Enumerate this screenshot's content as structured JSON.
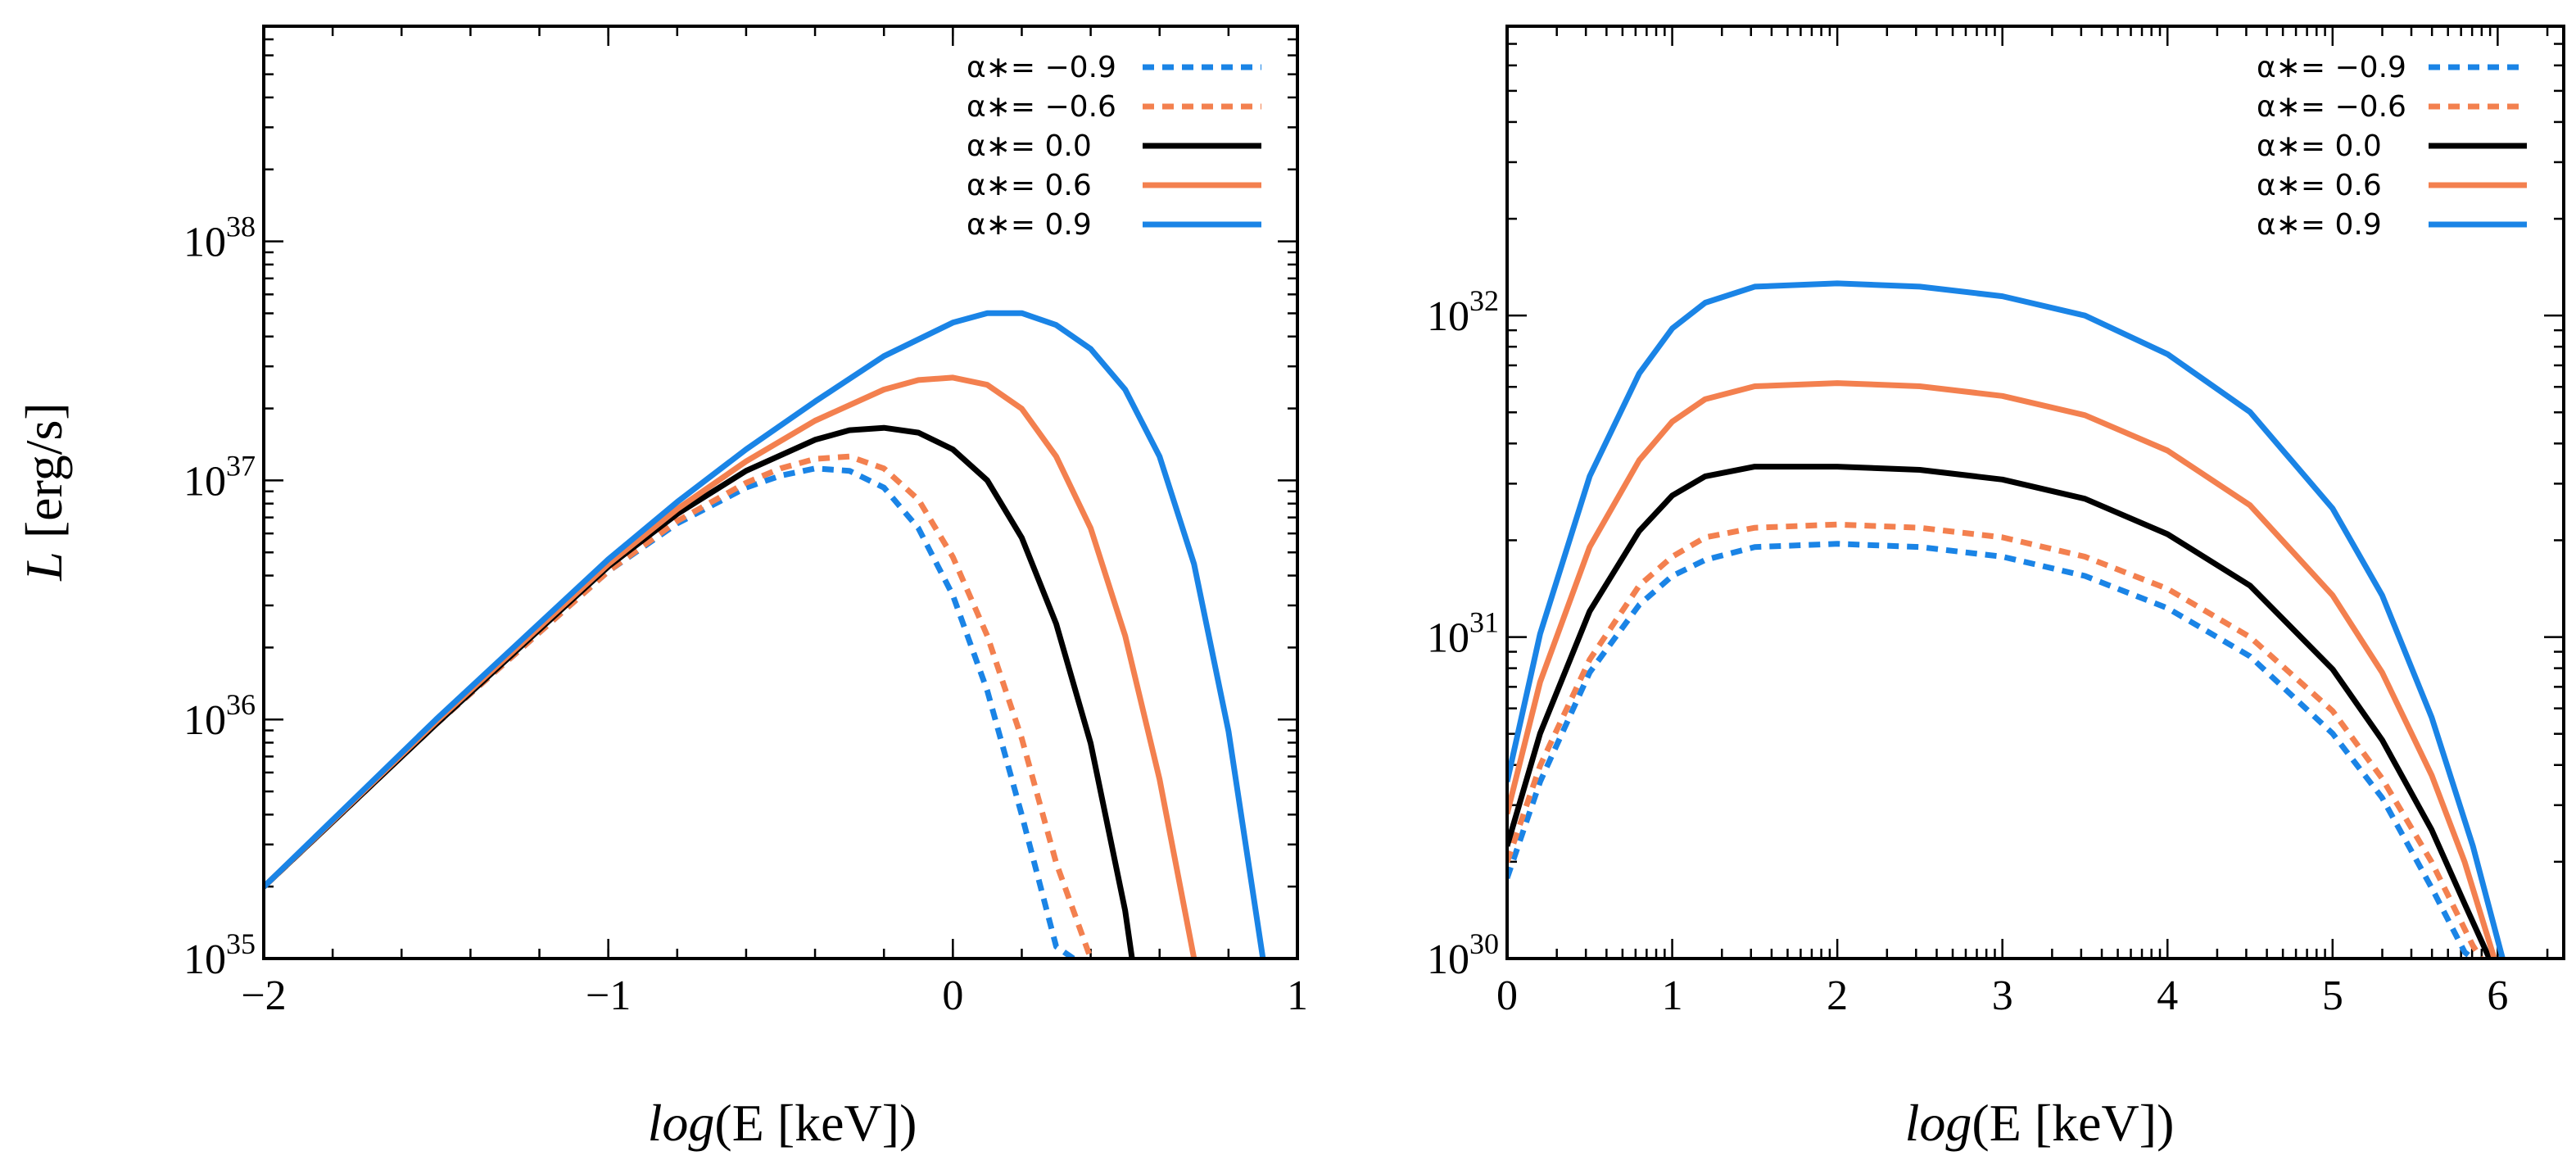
{
  "figure": {
    "ylabel_italic": "L",
    "ylabel_rest": " [erg/s]"
  },
  "colors": {
    "blue": "#1a84e6",
    "orange": "#f3804f",
    "black": "#000000"
  },
  "legend": [
    {
      "label": "α∗= −0.9",
      "color": "blue",
      "dash": true
    },
    {
      "label": "α∗= −0.6",
      "color": "orange",
      "dash": true
    },
    {
      "label": "α∗=   0.0",
      "color": "black",
      "dash": false
    },
    {
      "label": "α∗=   0.6",
      "color": "orange",
      "dash": false
    },
    {
      "label": "α∗=   0.9",
      "color": "blue",
      "dash": false
    }
  ],
  "chart_data": [
    {
      "type": "line",
      "xlabel_italic": "log",
      "xlabel_rest": "(E [keV])",
      "xlim": [
        -2,
        1
      ],
      "ylog_lim": [
        35,
        38.9
      ],
      "x_ticks": [
        {
          "value": -2,
          "label": "−2"
        },
        {
          "value": -1,
          "label": "−1"
        },
        {
          "value": 0,
          "label": "0"
        },
        {
          "value": 1,
          "label": "1"
        }
      ],
      "y_ticks": [
        {
          "exp": 35,
          "base": "10",
          "sup": "35"
        },
        {
          "exp": 36,
          "base": "10",
          "sup": "36"
        },
        {
          "exp": 37,
          "base": "10",
          "sup": "37"
        },
        {
          "exp": 38,
          "base": "10",
          "sup": "38"
        }
      ],
      "x_minor_step": 0.2,
      "series": [
        {
          "name": "α∗= −0.9",
          "color": "blue",
          "dash": true,
          "x": [
            -2,
            -1.5,
            -1,
            -0.8,
            -0.6,
            -0.5,
            -0.4,
            -0.3,
            -0.2,
            -0.1,
            0.0,
            0.1,
            0.2,
            0.3,
            0.35
          ],
          "log_y": [
            35.3,
            35.98,
            36.62,
            36.82,
            36.97,
            37.02,
            37.05,
            37.04,
            36.97,
            36.8,
            36.52,
            36.12,
            35.6,
            35.05,
            35.0
          ]
        },
        {
          "name": "α∗= −0.6",
          "color": "orange",
          "dash": true,
          "x": [
            -2,
            -1.5,
            -1,
            -0.8,
            -0.6,
            -0.5,
            -0.4,
            -0.3,
            -0.2,
            -0.1,
            0.0,
            0.1,
            0.2,
            0.3,
            0.4
          ],
          "log_y": [
            35.3,
            35.98,
            36.62,
            36.83,
            36.99,
            37.05,
            37.09,
            37.1,
            37.05,
            36.92,
            36.68,
            36.35,
            35.92,
            35.4,
            35.0
          ]
        },
        {
          "name": "α∗= 0.0",
          "color": "black",
          "dash": false,
          "x": [
            -2,
            -1.5,
            -1,
            -0.8,
            -0.6,
            -0.4,
            -0.3,
            -0.2,
            -0.1,
            0.0,
            0.1,
            0.2,
            0.3,
            0.4,
            0.5,
            0.52
          ],
          "log_y": [
            35.3,
            35.98,
            36.64,
            36.86,
            37.04,
            37.17,
            37.21,
            37.22,
            37.2,
            37.13,
            37.0,
            36.76,
            36.4,
            35.9,
            35.2,
            35.0
          ]
        },
        {
          "name": "α∗= 0.6",
          "color": "orange",
          "dash": false,
          "x": [
            -2,
            -1.5,
            -1,
            -0.8,
            -0.6,
            -0.4,
            -0.2,
            -0.1,
            0.0,
            0.1,
            0.2,
            0.3,
            0.4,
            0.5,
            0.6,
            0.7
          ],
          "log_y": [
            35.3,
            35.99,
            36.65,
            36.88,
            37.08,
            37.25,
            37.38,
            37.42,
            37.43,
            37.4,
            37.3,
            37.1,
            36.8,
            36.35,
            35.75,
            35.0
          ]
        },
        {
          "name": "α∗= 0.9",
          "color": "blue",
          "dash": false,
          "x": [
            -2,
            -1.5,
            -1,
            -0.8,
            -0.6,
            -0.4,
            -0.2,
            0.0,
            0.1,
            0.2,
            0.3,
            0.4,
            0.5,
            0.6,
            0.7,
            0.8,
            0.9
          ],
          "log_y": [
            35.3,
            36.0,
            36.67,
            36.91,
            37.13,
            37.33,
            37.52,
            37.66,
            37.7,
            37.7,
            37.65,
            37.55,
            37.38,
            37.1,
            36.65,
            35.95,
            35.0
          ]
        }
      ]
    },
    {
      "type": "line",
      "xlabel_italic": "log",
      "xlabel_rest": "(E [keV])",
      "xlim": [
        0,
        6.4
      ],
      "ylog_lim": [
        30,
        32.9
      ],
      "x_ticks": [
        {
          "value": 0,
          "label": "0"
        },
        {
          "value": 1,
          "label": "1"
        },
        {
          "value": 2,
          "label": "2"
        },
        {
          "value": 3,
          "label": "3"
        },
        {
          "value": 4,
          "label": "4"
        },
        {
          "value": 5,
          "label": "5"
        },
        {
          "value": 6,
          "label": "6"
        }
      ],
      "y_ticks": [
        {
          "exp": 30,
          "base": "10",
          "sup": "30"
        },
        {
          "exp": 31,
          "base": "10",
          "sup": "31"
        },
        {
          "exp": 32,
          "base": "10",
          "sup": "32"
        }
      ],
      "x_minor_log": true,
      "series": [
        {
          "name": "α∗= −0.9",
          "color": "blue",
          "dash": true,
          "x": [
            0,
            0.2,
            0.5,
            0.8,
            1.0,
            1.2,
            1.5,
            2.0,
            2.5,
            3.0,
            3.5,
            4.0,
            4.5,
            5.0,
            5.3,
            5.6,
            5.8,
            5.85
          ],
          "log_y": [
            30.25,
            30.55,
            30.89,
            31.1,
            31.19,
            31.24,
            31.28,
            31.29,
            31.28,
            31.25,
            31.19,
            31.09,
            30.94,
            30.7,
            30.5,
            30.22,
            30.02,
            30.0
          ]
        },
        {
          "name": "α∗= −0.6",
          "color": "orange",
          "dash": true,
          "x": [
            0,
            0.2,
            0.5,
            0.8,
            1.0,
            1.2,
            1.5,
            2.0,
            2.5,
            3.0,
            3.5,
            4.0,
            4.5,
            5.0,
            5.3,
            5.6,
            5.85,
            5.9
          ],
          "log_y": [
            30.3,
            30.6,
            30.93,
            31.16,
            31.25,
            31.31,
            31.34,
            31.35,
            31.34,
            31.31,
            31.25,
            31.15,
            31.0,
            30.77,
            30.56,
            30.3,
            30.04,
            30.0
          ]
        },
        {
          "name": "α∗= 0.0",
          "color": "black",
          "dash": false,
          "x": [
            0,
            0.2,
            0.5,
            0.8,
            1.0,
            1.2,
            1.5,
            2.0,
            2.5,
            3.0,
            3.5,
            4.0,
            4.5,
            5.0,
            5.3,
            5.6,
            5.8,
            5.95
          ],
          "log_y": [
            30.35,
            30.7,
            31.08,
            31.33,
            31.44,
            31.5,
            31.53,
            31.53,
            31.52,
            31.49,
            31.43,
            31.32,
            31.16,
            30.9,
            30.68,
            30.4,
            30.17,
            30.0
          ]
        },
        {
          "name": "α∗= 0.6",
          "color": "orange",
          "dash": false,
          "x": [
            0,
            0.2,
            0.5,
            0.8,
            1.0,
            1.2,
            1.5,
            2.0,
            2.5,
            3.0,
            3.5,
            4.0,
            4.5,
            5.0,
            5.3,
            5.6,
            5.8,
            5.98
          ],
          "log_y": [
            30.45,
            30.86,
            31.28,
            31.55,
            31.67,
            31.74,
            31.78,
            31.79,
            31.78,
            31.75,
            31.69,
            31.58,
            31.41,
            31.13,
            30.89,
            30.57,
            30.3,
            30.0
          ]
        },
        {
          "name": "α∗= 0.9",
          "color": "blue",
          "dash": false,
          "x": [
            0,
            0.2,
            0.5,
            0.8,
            1.0,
            1.2,
            1.5,
            2.0,
            2.5,
            3.0,
            3.5,
            4.0,
            4.5,
            5.0,
            5.3,
            5.6,
            5.85,
            6.03
          ],
          "log_y": [
            30.55,
            31.01,
            31.5,
            31.82,
            31.96,
            32.04,
            32.09,
            32.1,
            32.09,
            32.06,
            32.0,
            31.88,
            31.7,
            31.4,
            31.13,
            30.75,
            30.35,
            30.0
          ]
        }
      ]
    }
  ]
}
